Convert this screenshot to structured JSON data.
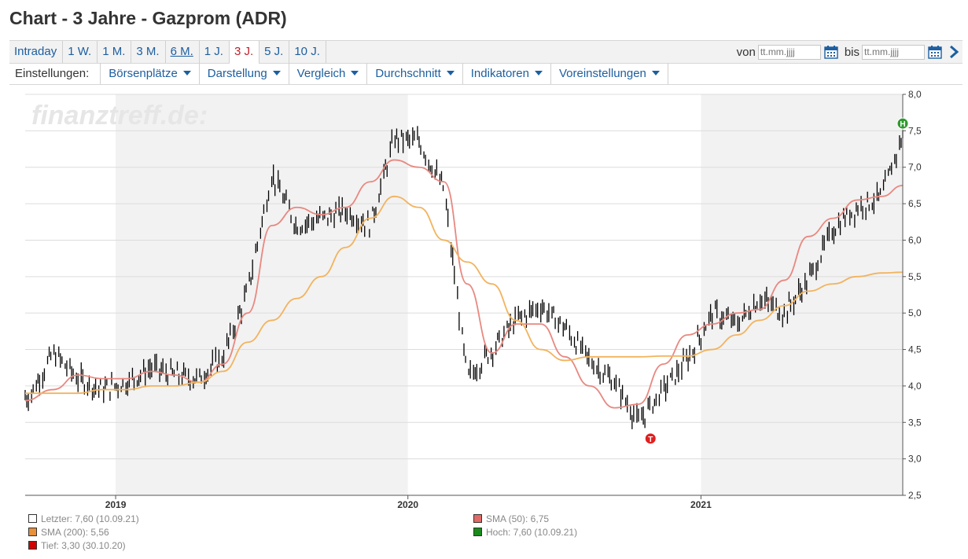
{
  "page": {
    "title": "Chart - 3 Jahre - Gazprom (ADR)"
  },
  "tabs": [
    {
      "label": "Intraday",
      "active": false,
      "underline": false
    },
    {
      "label": "1 W.",
      "active": false,
      "underline": false
    },
    {
      "label": "1 M.",
      "active": false,
      "underline": false
    },
    {
      "label": "3 M.",
      "active": false,
      "underline": false
    },
    {
      "label": "6 M.",
      "active": false,
      "underline": true
    },
    {
      "label": "1 J.",
      "active": false,
      "underline": false
    },
    {
      "label": "3 J.",
      "active": true,
      "underline": false
    },
    {
      "label": "5 J.",
      "active": false,
      "underline": false
    },
    {
      "label": "10 J.",
      "active": false,
      "underline": false
    }
  ],
  "range": {
    "from_label": "von",
    "to_label": "bis",
    "placeholder": "tt.mm.jjjj",
    "calendar_icon": "calendar-icon",
    "next_icon": "chevron-right-icon"
  },
  "settings": {
    "label": "Einstellungen:",
    "menus": [
      "Börsenplätze",
      "Darstellung",
      "Vergleich",
      "Durchschnitt",
      "Indikatoren",
      "Voreinstellungen"
    ]
  },
  "watermark": "finanztreff.de:",
  "colors": {
    "link": "#1d5fa0",
    "active_tab": "#c0202a",
    "sma50": "#e88880",
    "sma200": "#f2b35e",
    "high_marker": "#2f9a2f",
    "low_marker": "#e02020",
    "shade": "#f2f2f2"
  },
  "chart_data": {
    "type": "ohlc",
    "ylim": [
      2.5,
      8.0
    ],
    "yticks": [
      "8,0",
      "7,5",
      "7,0",
      "6,5",
      "6,0",
      "5,5",
      "5,0",
      "4,5",
      "4,0",
      "3,5",
      "3,0",
      "2,5"
    ],
    "xticks": [
      "2019",
      "2020",
      "2021"
    ],
    "price_series": {
      "name": "Letzter",
      "x": [
        "2018-09",
        "2018-10",
        "2018-11",
        "2018-12",
        "2019-01",
        "2019-02",
        "2019-03",
        "2019-04",
        "2019-05",
        "2019-06",
        "2019-07",
        "2019-08",
        "2019-09",
        "2019-10",
        "2019-11",
        "2019-12",
        "2020-01",
        "2020-02",
        "2020-03",
        "2020-04",
        "2020-05",
        "2020-06",
        "2020-07",
        "2020-08",
        "2020-09",
        "2020-10",
        "2020-11",
        "2020-12",
        "2021-01",
        "2021-02",
        "2021-03",
        "2021-04",
        "2021-05",
        "2021-06",
        "2021-07",
        "2021-08",
        "2021-09"
      ],
      "values": [
        3.85,
        4.45,
        4.1,
        3.95,
        4.05,
        4.25,
        4.15,
        4.1,
        4.4,
        5.3,
        6.9,
        6.2,
        6.3,
        6.4,
        6.2,
        7.4,
        7.35,
        6.7,
        4.1,
        4.5,
        4.9,
        5.1,
        4.8,
        4.35,
        4.05,
        3.5,
        3.95,
        4.35,
        5.0,
        4.85,
        5.2,
        5.0,
        5.45,
        6.15,
        6.45,
        6.6,
        7.6
      ]
    },
    "series": [
      {
        "name": "SMA (50)",
        "values": [
          3.8,
          3.95,
          4.15,
          4.1,
          4.1,
          4.2,
          4.15,
          4.05,
          4.3,
          5.0,
          6.2,
          6.45,
          6.35,
          6.45,
          6.8,
          7.1,
          7.0,
          6.8,
          5.4,
          4.45,
          4.85,
          4.85,
          4.4,
          4.0,
          3.7,
          3.75,
          4.3,
          4.7,
          4.85,
          5.0,
          5.05,
          5.45,
          6.05,
          6.3,
          6.55,
          6.6,
          6.75
        ]
      },
      {
        "name": "SMA (200)",
        "values": [
          3.9,
          3.9,
          3.9,
          3.95,
          3.95,
          4.0,
          4.0,
          4.05,
          4.2,
          4.6,
          4.9,
          5.2,
          5.5,
          5.9,
          6.3,
          6.6,
          6.45,
          6.0,
          5.7,
          5.4,
          4.9,
          4.5,
          4.35,
          4.4,
          4.4,
          4.4,
          4.41,
          4.41,
          4.5,
          4.7,
          4.9,
          5.1,
          5.3,
          5.4,
          5.5,
          5.55,
          5.56
        ]
      }
    ],
    "markers": [
      {
        "label": "H",
        "x": "2021-09",
        "y": 7.6
      },
      {
        "label": "T",
        "x": "2020-10",
        "y": 3.3
      }
    ],
    "legend": [
      {
        "text": "Letzter: 7,60 (10.09.21)",
        "color": "#ffffff"
      },
      {
        "text": "SMA (50): 6,75",
        "color": "#e06a66"
      },
      {
        "text": "SMA (200): 5,56",
        "color": "#e8903a"
      },
      {
        "text": "Hoch: 7,60 (10.09.21)",
        "color": "#1a8a1a"
      },
      {
        "text": "Tief: 3,30 (30.10.20)",
        "color": "#d00000"
      }
    ]
  }
}
